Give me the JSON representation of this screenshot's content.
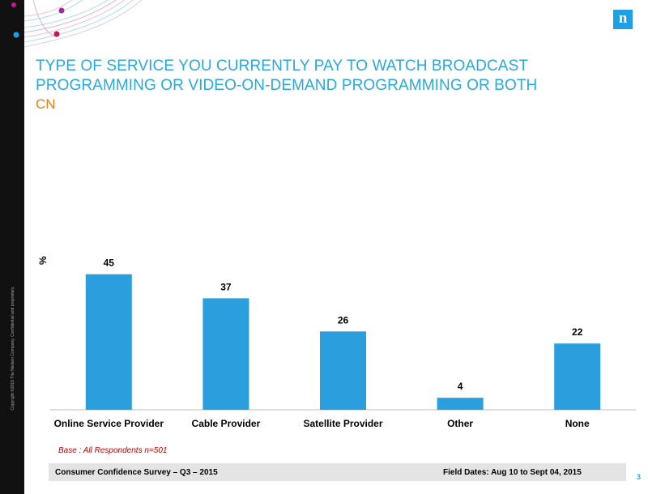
{
  "slide": {
    "title": "TYPE OF SERVICE YOU CURRENTLY PAY TO WATCH BROADCAST PROGRAMMING OR VIDEO-ON-DEMAND PROGRAMMING OR BOTH",
    "subtitle": "CN",
    "logo_letter": "n",
    "copyright": "Copyright ©2015 The Nielsen Company. Confidential and proprietary.",
    "base_note": "Base : All Respondents  n=501",
    "footer_left": "Consumer Confidence Survey – Q3 – 2015",
    "footer_right": "Field Dates: Aug 10 to Sept 04, 2015",
    "page_number": "3"
  },
  "colors": {
    "bar": "#2b9fde",
    "title": "#2aa8e0",
    "subtitle": "#f07d1a"
  },
  "chart_data": {
    "type": "bar",
    "title": "TYPE OF SERVICE YOU CURRENTLY PAY TO WATCH BROADCAST PROGRAMMING OR VIDEO-ON-DEMAND PROGRAMMING OR BOTH",
    "categories": [
      "Online Service Provider",
      "Cable Provider",
      "Satellite Provider",
      "Other",
      "None"
    ],
    "values": [
      45,
      37,
      26,
      4,
      22
    ],
    "xlabel": "",
    "ylabel": "%",
    "ylim": [
      0,
      50
    ],
    "grid": false
  }
}
